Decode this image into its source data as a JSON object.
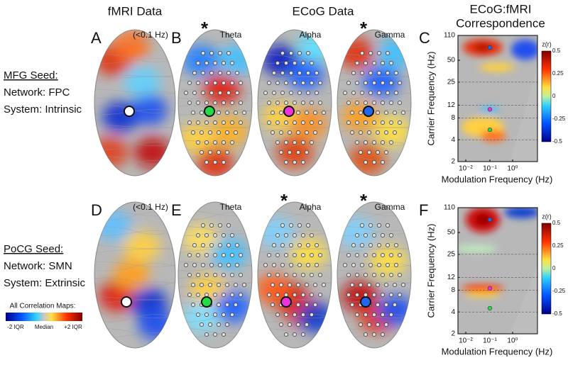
{
  "headers": [
    "fMRI Data",
    "ECoG Data",
    "ECoG:fMRI",
    "Correspondence"
  ],
  "rows": [
    {
      "seed": "MFG Seed:",
      "network": "Network: FPC",
      "system": "System: Intrinsic",
      "panels": [
        {
          "letter": "A",
          "label": "(<0.1 Hz)"
        },
        {
          "letter": "B",
          "label": "Theta",
          "star": "*"
        },
        {
          "label": "Alpha"
        },
        {
          "label": "Gamma",
          "star": "*"
        }
      ],
      "corr_letter": "C"
    },
    {
      "seed": "PoCG Seed:",
      "network": "Network: SMN",
      "system": "System: Extrinsic",
      "panels": [
        {
          "letter": "D",
          "label": "(<0.1 Hz)"
        },
        {
          "letter": "E",
          "label": "Theta"
        },
        {
          "label": "Alpha",
          "star": "*"
        },
        {
          "label": "Gamma",
          "star": "*"
        }
      ],
      "corr_letter": "F"
    }
  ],
  "legend": {
    "title": "All Correlation Maps:",
    "low": "-2 IQR",
    "mid": "Median",
    "high": "+2 IQR"
  },
  "axes": {
    "ylabel": "Carrier Frequency (Hz)",
    "xlabel": "Modulation Frequency (Hz)",
    "yticks": [
      "110",
      "50",
      "25",
      "12",
      "8",
      "4",
      "2"
    ],
    "xticks": [
      "10⁻²",
      "10⁻¹",
      "10⁰"
    ],
    "cbar_title": "z(r)",
    "cbar_ticks": [
      "0.5",
      "0.25",
      "0",
      "-0.25",
      "-0.5"
    ]
  }
}
